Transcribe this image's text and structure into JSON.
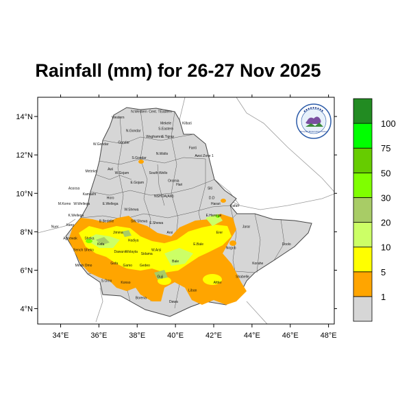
{
  "title": "Rainfall (mm) for 26-27 Nov 2025",
  "lon_ticks": [
    "34°E",
    "36°E",
    "38°E",
    "40°E",
    "42°E",
    "44°E",
    "46°E",
    "48°E"
  ],
  "lat_ticks": [
    "14°N",
    "12°N",
    "10°N",
    "8°N",
    "6°N",
    "4°N"
  ],
  "map_extent": {
    "lon": [
      32.8,
      48.3
    ],
    "lat": [
      3.2,
      15.0
    ]
  },
  "legend": {
    "levels": [
      "1",
      "5",
      "10",
      "20",
      "30",
      "50",
      "75",
      "100"
    ],
    "colors": [
      "#d6d6d6",
      "#ffa500",
      "#ffff00",
      "#ccff66",
      "#a8cc66",
      "#7fff00",
      "#66cc00",
      "#00ff00",
      "#228b22"
    ]
  },
  "logo": {
    "text": "Ethiopian Meteorology Institute"
  },
  "regions": [
    {
      "name": "N.Western",
      "lon": 38.1,
      "lat": 14.2
    },
    {
      "name": "Cent. T",
      "lon": 38.9,
      "lat": 14.2
    },
    {
      "name": "Eastern",
      "lon": 39.5,
      "lat": 14.2
    },
    {
      "name": "Western",
      "lon": 37.0,
      "lat": 13.9
    },
    {
      "name": "Mekele",
      "lon": 39.5,
      "lat": 13.6
    },
    {
      "name": "Kilbati",
      "lon": 40.6,
      "lat": 13.6
    },
    {
      "name": "S.Eastern",
      "lon": 39.5,
      "lat": 13.3
    },
    {
      "name": "N.Gondar",
      "lon": 37.8,
      "lat": 13.2
    },
    {
      "name": "Waghamra",
      "lon": 38.9,
      "lat": 12.9
    },
    {
      "name": "S.Tigray",
      "lon": 39.6,
      "lat": 12.9
    },
    {
      "name": "W.Gondar",
      "lon": 36.1,
      "lat": 12.5
    },
    {
      "name": "Gondar",
      "lon": 37.3,
      "lat": 12.6
    },
    {
      "name": "Fanti",
      "lon": 40.9,
      "lat": 12.3
    },
    {
      "name": "N.Wollo",
      "lon": 39.3,
      "lat": 12.0
    },
    {
      "name": "Awsi Zone 1",
      "lon": 41.5,
      "lat": 11.9
    },
    {
      "name": "S.Gondar",
      "lon": 38.1,
      "lat": 11.8
    },
    {
      "name": "Metekel",
      "lon": 35.6,
      "lat": 11.1
    },
    {
      "name": "Awi",
      "lon": 36.6,
      "lat": 11.2
    },
    {
      "name": "W.Gojam",
      "lon": 37.2,
      "lat": 11.0
    },
    {
      "name": "South Wello",
      "lon": 39.1,
      "lat": 11.0
    },
    {
      "name": "Oromia",
      "lon": 39.9,
      "lat": 10.6
    },
    {
      "name": "E.Gojam",
      "lon": 38.0,
      "lat": 10.5
    },
    {
      "name": "Hari",
      "lon": 40.2,
      "lat": 10.4
    },
    {
      "name": "Siti",
      "lon": 41.8,
      "lat": 10.2
    },
    {
      "name": "Assosa",
      "lon": 34.7,
      "lat": 10.2
    },
    {
      "name": "Kamashi",
      "lon": 35.5,
      "lat": 9.9
    },
    {
      "name": "Horo",
      "lon": 36.6,
      "lat": 9.7
    },
    {
      "name": "NSHOA(AM)",
      "lon": 39.4,
      "lat": 9.8
    },
    {
      "name": "D.D",
      "lon": 41.9,
      "lat": 9.7
    },
    {
      "name": "Harari",
      "lon": 42.1,
      "lat": 9.4
    },
    {
      "name": "Fafan",
      "lon": 43.1,
      "lat": 9.3
    },
    {
      "name": "M.Komo",
      "lon": 34.2,
      "lat": 9.4
    },
    {
      "name": "W.Wellega",
      "lon": 35.1,
      "lat": 9.4
    },
    {
      "name": "E.Wellega",
      "lon": 36.6,
      "lat": 9.4
    },
    {
      "name": "W.Shewa",
      "lon": 37.7,
      "lat": 9.1
    },
    {
      "name": "E.Harerge",
      "lon": 42.0,
      "lat": 8.8
    },
    {
      "name": "K.Wellega",
      "lon": 34.8,
      "lat": 8.8
    },
    {
      "name": "B.Bedelle",
      "lon": 36.4,
      "lat": 8.5
    },
    {
      "name": "SW.Shewa",
      "lon": 38.1,
      "lat": 8.5
    },
    {
      "name": "E.Shewa",
      "lon": 39.0,
      "lat": 8.4
    },
    {
      "name": "Nuer",
      "lon": 33.7,
      "lat": 8.2
    },
    {
      "name": "Itang",
      "lon": 34.5,
      "lat": 8.3
    },
    {
      "name": "Jimma",
      "lon": 37.0,
      "lat": 7.9
    },
    {
      "name": "Arsi",
      "lon": 39.7,
      "lat": 7.9
    },
    {
      "name": "Erer",
      "lon": 42.3,
      "lat": 7.9
    },
    {
      "name": "Jarar",
      "lon": 43.7,
      "lat": 8.2
    },
    {
      "name": "Agnewak",
      "lon": 34.5,
      "lat": 7.6
    },
    {
      "name": "Sheka",
      "lon": 35.5,
      "lat": 7.6
    },
    {
      "name": "Kefa",
      "lon": 36.1,
      "lat": 7.3
    },
    {
      "name": "Hadiya",
      "lon": 37.8,
      "lat": 7.5
    },
    {
      "name": "W.Arsi",
      "lon": 39.0,
      "lat": 7.0
    },
    {
      "name": "E.Bale",
      "lon": 41.2,
      "lat": 7.3
    },
    {
      "name": "Nogob",
      "lon": 42.9,
      "lat": 7.1
    },
    {
      "name": "Doolo",
      "lon": 45.8,
      "lat": 7.3
    },
    {
      "name": "Bench Sheko",
      "lon": 35.2,
      "lat": 7.0
    },
    {
      "name": "Dawuro",
      "lon": 37.1,
      "lat": 6.9
    },
    {
      "name": "Wolayta",
      "lon": 37.7,
      "lat": 6.9
    },
    {
      "name": "Sidama",
      "lon": 38.5,
      "lat": 6.8
    },
    {
      "name": "Bale",
      "lon": 40.0,
      "lat": 6.4
    },
    {
      "name": "Korahe",
      "lon": 44.3,
      "lat": 6.3
    },
    {
      "name": "Mirab Omo",
      "lon": 35.2,
      "lat": 6.2
    },
    {
      "name": "Gofa",
      "lon": 36.8,
      "lat": 6.3
    },
    {
      "name": "Gamo",
      "lon": 37.5,
      "lat": 6.2
    },
    {
      "name": "Gedeo",
      "lon": 38.4,
      "lat": 6.2
    },
    {
      "name": "Shabelle",
      "lon": 43.5,
      "lat": 5.6
    },
    {
      "name": "S.Omo",
      "lon": 36.4,
      "lat": 5.4
    },
    {
      "name": "Konso",
      "lon": 37.4,
      "lat": 5.3
    },
    {
      "name": "Guji",
      "lon": 39.2,
      "lat": 5.6
    },
    {
      "name": "Afder",
      "lon": 42.2,
      "lat": 5.3
    },
    {
      "name": "Liban",
      "lon": 40.9,
      "lat": 4.9
    },
    {
      "name": "Borena",
      "lon": 38.2,
      "lat": 4.5
    },
    {
      "name": "Dawa",
      "lon": 39.9,
      "lat": 4.3
    }
  ]
}
